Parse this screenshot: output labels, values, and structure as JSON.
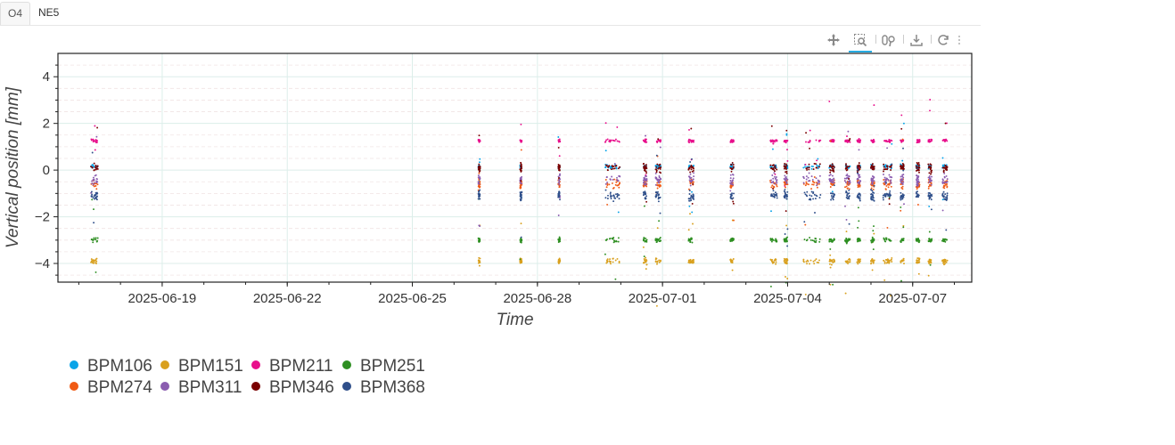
{
  "tabs": [
    {
      "label": "O4",
      "active": true
    },
    {
      "label": "NE5",
      "active": false
    }
  ],
  "toolbar": {
    "tools": [
      "pan-icon",
      "box-zoom-icon",
      "wheel-zoom-icon",
      "save-icon",
      "reset-icon"
    ],
    "active_tool": "box-zoom-icon",
    "accent_color": "#26aae1"
  },
  "chart_data": {
    "type": "scatter",
    "xlabel": "Time",
    "ylabel": "Vertical position [mm]",
    "x_ticks": [
      "2025-06-19",
      "2025-06-22",
      "2025-06-25",
      "2025-06-28",
      "2025-07-01",
      "2025-07-04",
      "2025-07-07"
    ],
    "xlim": [
      "2025-06-16T12:00",
      "2025-07-08T10:00"
    ],
    "ylim": [
      -4.8,
      5.0
    ],
    "y_ticks": [
      4,
      2,
      0,
      -2,
      -4
    ],
    "grid": true,
    "legend_position": "bottom-left",
    "sessions": [
      [
        "2025-06-17T07:00",
        "2025-06-17T11:00"
      ],
      [
        "2025-06-26T14:00",
        "2025-06-26T15:00"
      ],
      [
        "2025-06-27T14:00",
        "2025-06-27T15:00"
      ],
      [
        "2025-06-28T12:00",
        "2025-06-28T13:00"
      ],
      [
        "2025-06-29T15:00",
        "2025-06-29T23:30"
      ],
      [
        "2025-06-30T13:00",
        "2025-06-30T15:00"
      ],
      [
        "2025-06-30T20:00",
        "2025-06-30T23:00"
      ],
      [
        "2025-07-01T15:00",
        "2025-07-01T18:00"
      ],
      [
        "2025-07-02T15:00",
        "2025-07-02T17:00"
      ],
      [
        "2025-07-03T14:00",
        "2025-07-03T18:00"
      ],
      [
        "2025-07-03T22:00",
        "2025-07-04T00:00"
      ],
      [
        "2025-07-04T09:00",
        "2025-07-04T19:00"
      ],
      [
        "2025-07-05T00:00",
        "2025-07-05T03:00"
      ],
      [
        "2025-07-05T09:00",
        "2025-07-05T12:00"
      ],
      [
        "2025-07-05T16:00",
        "2025-07-05T18:00"
      ],
      [
        "2025-07-06T00:00",
        "2025-07-06T02:00"
      ],
      [
        "2025-07-06T07:00",
        "2025-07-06T12:00"
      ],
      [
        "2025-07-06T17:00",
        "2025-07-06T19:00"
      ],
      [
        "2025-07-07T02:00",
        "2025-07-07T04:00"
      ],
      [
        "2025-07-07T09:00",
        "2025-07-07T11:00"
      ],
      [
        "2025-07-07T17:00",
        "2025-07-07T20:00"
      ]
    ],
    "series": [
      {
        "name": "BPM106",
        "color": "#0aa4e8",
        "level": 0.15,
        "spread": 0.12
      },
      {
        "name": "BPM151",
        "color": "#d9a01e",
        "level": -3.9,
        "spread": 0.18
      },
      {
        "name": "BPM211",
        "color": "#e8108c",
        "level": 1.25,
        "spread": 0.1
      },
      {
        "name": "BPM251",
        "color": "#2e8f22",
        "level": -3.0,
        "spread": 0.15
      },
      {
        "name": "BPM274",
        "color": "#f05a14",
        "level": -0.6,
        "spread": 0.3
      },
      {
        "name": "BPM311",
        "color": "#8b5db0",
        "level": -0.4,
        "spread": 0.35
      },
      {
        "name": "BPM346",
        "color": "#7a0000",
        "level": 0.1,
        "spread": 0.3
      },
      {
        "name": "BPM368",
        "color": "#2f4f8a",
        "level": -1.1,
        "spread": 0.3
      }
    ]
  }
}
